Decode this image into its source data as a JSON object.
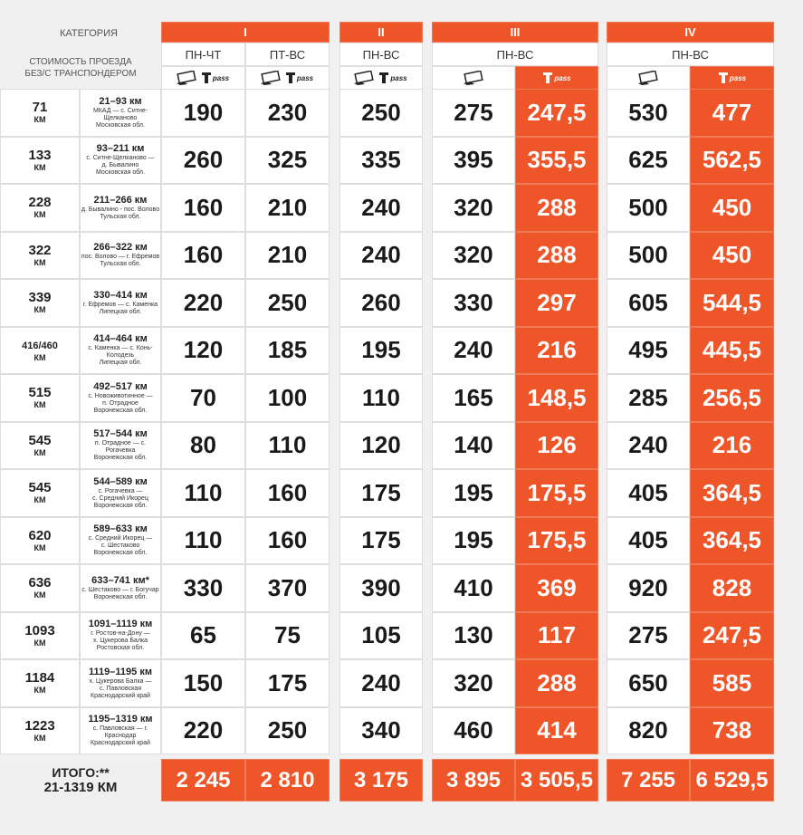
{
  "header": {
    "category_label": "КАТЕГОРИЯ",
    "cost_label": [
      "СТОИМОСТЬ ПРОЕЗДА",
      "БЕЗ/С ТРАНСПОНДЕРОМ"
    ],
    "categories": [
      "I",
      "II",
      "III",
      "IV"
    ],
    "days": [
      "ПН-ЧТ",
      "ПТ-ВС",
      "ПН-ВС",
      "ПН-ВС",
      "ПН-ВС"
    ],
    "transponder_logo": "pass"
  },
  "rows": [
    {
      "distance": "71",
      "unit": "КМ",
      "segment": "21–93 км",
      "route": [
        "МКАД — с. Ситне-Щелканово",
        "Московская обл."
      ],
      "prices": [
        "190",
        "230",
        "250",
        "275",
        "247,5",
        "530",
        "477"
      ]
    },
    {
      "distance": "133",
      "unit": "КМ",
      "segment": "93–211 км",
      "route": [
        "с. Ситне-Щелканово —",
        "д. Бывалино",
        "Московская обл."
      ],
      "prices": [
        "260",
        "325",
        "335",
        "395",
        "355,5",
        "625",
        "562,5"
      ]
    },
    {
      "distance": "228",
      "unit": "КМ",
      "segment": "211–266 км",
      "route": [
        "д. Бывалино - пос. Волово",
        "Тульская обл."
      ],
      "prices": [
        "160",
        "210",
        "240",
        "320",
        "288",
        "500",
        "450"
      ]
    },
    {
      "distance": "322",
      "unit": "КМ",
      "segment": "266–322 км",
      "route": [
        "пос. Волово — г. Ефремов",
        "Тульская обл."
      ],
      "prices": [
        "160",
        "210",
        "240",
        "320",
        "288",
        "500",
        "450"
      ]
    },
    {
      "distance": "339",
      "unit": "КМ",
      "segment": "330–414 км",
      "route": [
        "г. Ефремов — с. Каменка",
        "Липецкая обл."
      ],
      "prices": [
        "220",
        "250",
        "260",
        "330",
        "297",
        "605",
        "544,5"
      ]
    },
    {
      "distance": "416/460",
      "unit": "КМ",
      "segment": "414–464 км",
      "route": [
        "с. Каменка — с. Конь-Колодезь",
        "Липецкая обл."
      ],
      "prices": [
        "120",
        "185",
        "195",
        "240",
        "216",
        "495",
        "445,5"
      ]
    },
    {
      "distance": "515",
      "unit": "КМ",
      "segment": "492–517 км",
      "route": [
        "с. Новоживотинное —",
        "п. Отрадное",
        "Воронежская обл."
      ],
      "prices": [
        "70",
        "100",
        "110",
        "165",
        "148,5",
        "285",
        "256,5"
      ]
    },
    {
      "distance": "545",
      "unit": "КМ",
      "segment": "517–544 км",
      "route": [
        "п. Отрадное — с. Рогачевка",
        "Воронежская обл."
      ],
      "prices": [
        "80",
        "110",
        "120",
        "140",
        "126",
        "240",
        "216"
      ]
    },
    {
      "distance": "545",
      "unit": "КМ",
      "segment": "544–589 км",
      "route": [
        "с. Рогачевка —",
        "с. Средний Икорец",
        "Воронежская обл."
      ],
      "prices": [
        "110",
        "160",
        "175",
        "195",
        "175,5",
        "405",
        "364,5"
      ]
    },
    {
      "distance": "620",
      "unit": "КМ",
      "segment": "589–633 км",
      "route": [
        "с. Средний Икорец —",
        "с. Шестаково",
        "Воронежская обл."
      ],
      "prices": [
        "110",
        "160",
        "175",
        "195",
        "175,5",
        "405",
        "364,5"
      ]
    },
    {
      "distance": "636",
      "unit": "КМ",
      "segment": "633–741 км*",
      "route": [
        "с. Шестаково — г. Богучар",
        "Воронежская обл."
      ],
      "prices": [
        "330",
        "370",
        "390",
        "410",
        "369",
        "920",
        "828"
      ]
    },
    {
      "distance": "1093",
      "unit": "КМ",
      "segment": "1091–1119 км",
      "route": [
        "г. Ростов-на-Дону —",
        "х. Цукерова Балка",
        "Ростовская обл."
      ],
      "prices": [
        "65",
        "75",
        "105",
        "130",
        "117",
        "275",
        "247,5"
      ]
    },
    {
      "distance": "1184",
      "unit": "КМ",
      "segment": "1119–1195 км",
      "route": [
        "х. Цукерова Балка —",
        "с. Павловская",
        "Краснодарский край"
      ],
      "prices": [
        "150",
        "175",
        "240",
        "320",
        "288",
        "650",
        "585"
      ]
    },
    {
      "distance": "1223",
      "unit": "КМ",
      "segment": "1195–1319 км",
      "route": [
        "с. Павловская — г. Краснодар",
        "Краснодарский край"
      ],
      "prices": [
        "220",
        "250",
        "340",
        "460",
        "414",
        "820",
        "738"
      ]
    }
  ],
  "total": {
    "label": "ИТОГО:**",
    "range": "21-1319 КМ",
    "prices": [
      "2 245",
      "2 810",
      "3 175",
      "3 895",
      "3 505,5",
      "7 255",
      "6 529,5"
    ]
  }
}
